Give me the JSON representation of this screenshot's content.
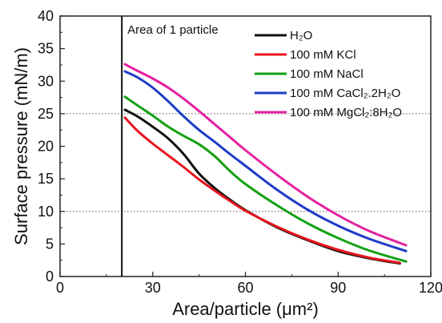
{
  "chart_data": {
    "type": "line",
    "xlabel": "Area/particle (μm²)",
    "ylabel": "Surface pressure (mN/m)",
    "xlim": [
      0,
      120
    ],
    "ylim": [
      0,
      40
    ],
    "xticks": [
      0,
      30,
      60,
      90,
      120
    ],
    "yticks": [
      0,
      5,
      10,
      15,
      20,
      25,
      30,
      35,
      40
    ],
    "legend_position": "top-right",
    "annotation": "Area of 1 particle",
    "vertical_line_x": 20,
    "reference_lines_y": [
      25,
      10
    ],
    "series": [
      {
        "name": "H₂O",
        "color": "#111111",
        "points": [
          [
            21,
            25.6
          ],
          [
            25,
            24.6
          ],
          [
            30,
            23.0
          ],
          [
            35,
            21.2
          ],
          [
            40,
            18.8
          ],
          [
            45,
            15.8
          ],
          [
            50,
            13.6
          ],
          [
            55,
            11.8
          ],
          [
            60,
            10.2
          ],
          [
            70,
            7.6
          ],
          [
            80,
            5.6
          ],
          [
            90,
            3.9
          ],
          [
            100,
            2.8
          ],
          [
            110,
            2.0
          ]
        ]
      },
      {
        "name": "100 mM KCl",
        "color": "#e8141e",
        "points": [
          [
            21,
            24.4
          ],
          [
            25,
            22.4
          ],
          [
            30,
            20.4
          ],
          [
            35,
            18.6
          ],
          [
            40,
            16.8
          ],
          [
            45,
            14.9
          ],
          [
            50,
            13.2
          ],
          [
            55,
            11.6
          ],
          [
            60,
            10.1
          ],
          [
            70,
            7.7
          ],
          [
            80,
            5.7
          ],
          [
            90,
            4.1
          ],
          [
            100,
            2.9
          ],
          [
            110,
            2.1
          ]
        ]
      },
      {
        "name": "100 mM NaCl",
        "color": "#14a014",
        "points": [
          [
            21,
            27.6
          ],
          [
            25,
            26.3
          ],
          [
            30,
            24.7
          ],
          [
            35,
            23.0
          ],
          [
            40,
            21.6
          ],
          [
            45,
            20.3
          ],
          [
            50,
            18.5
          ],
          [
            55,
            16.2
          ],
          [
            60,
            14.2
          ],
          [
            70,
            11.0
          ],
          [
            80,
            8.2
          ],
          [
            90,
            5.9
          ],
          [
            100,
            4.0
          ],
          [
            112,
            2.3
          ]
        ]
      },
      {
        "name": "100 mM CaCl₂.2H₂O",
        "color": "#1e3cc8",
        "points": [
          [
            21,
            31.5
          ],
          [
            25,
            30.6
          ],
          [
            30,
            29.0
          ],
          [
            35,
            26.9
          ],
          [
            40,
            24.6
          ],
          [
            45,
            22.5
          ],
          [
            50,
            20.7
          ],
          [
            55,
            18.8
          ],
          [
            60,
            17.0
          ],
          [
            70,
            13.4
          ],
          [
            80,
            10.3
          ],
          [
            90,
            7.8
          ],
          [
            100,
            5.8
          ],
          [
            112,
            3.9
          ]
        ]
      },
      {
        "name": "100 mM MgCl₂:8H₂O",
        "color": "#e620a0",
        "points": [
          [
            21,
            32.6
          ],
          [
            25,
            31.6
          ],
          [
            30,
            30.4
          ],
          [
            35,
            29.0
          ],
          [
            40,
            27.3
          ],
          [
            45,
            25.4
          ],
          [
            50,
            23.4
          ],
          [
            55,
            21.4
          ],
          [
            60,
            19.4
          ],
          [
            70,
            15.7
          ],
          [
            80,
            12.3
          ],
          [
            90,
            9.4
          ],
          [
            100,
            7.0
          ],
          [
            112,
            4.8
          ]
        ]
      }
    ]
  }
}
